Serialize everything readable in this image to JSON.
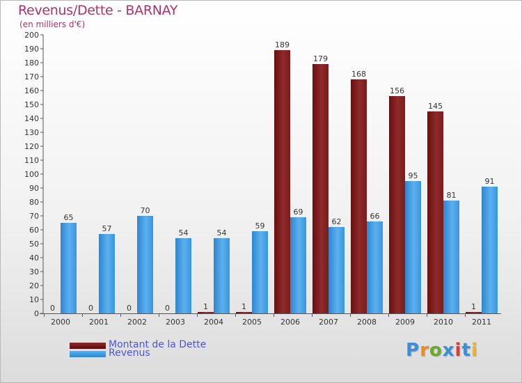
{
  "chart_data": {
    "type": "bar",
    "title": "Revenus/Dette - BARNAY",
    "subtitle": "(en milliers d'€)",
    "categories": [
      "2000",
      "2001",
      "2002",
      "2003",
      "2004",
      "2005",
      "2006",
      "2007",
      "2008",
      "2009",
      "2010",
      "2011"
    ],
    "series": [
      {
        "name": "Montant de la Dette",
        "color": "#7a1f1f",
        "values": [
          0,
          0,
          0,
          0,
          1,
          1,
          189,
          179,
          168,
          156,
          145,
          1
        ]
      },
      {
        "name": "Revenus",
        "color": "#3f9be0",
        "values": [
          65,
          57,
          70,
          54,
          54,
          59,
          69,
          62,
          66,
          95,
          81,
          91
        ]
      }
    ],
    "ylim": [
      0,
      200
    ],
    "ytick_step": 10,
    "grid": false,
    "legend_position": "bottom-left"
  },
  "brand": {
    "logo_text": "Proxiti",
    "logo_colors": [
      "#3a8fd8",
      "#f08a1c",
      "#6aa82e",
      "#3a8fd8",
      "#e23b2e",
      "#3a8fd8",
      "#f0b41c"
    ]
  }
}
